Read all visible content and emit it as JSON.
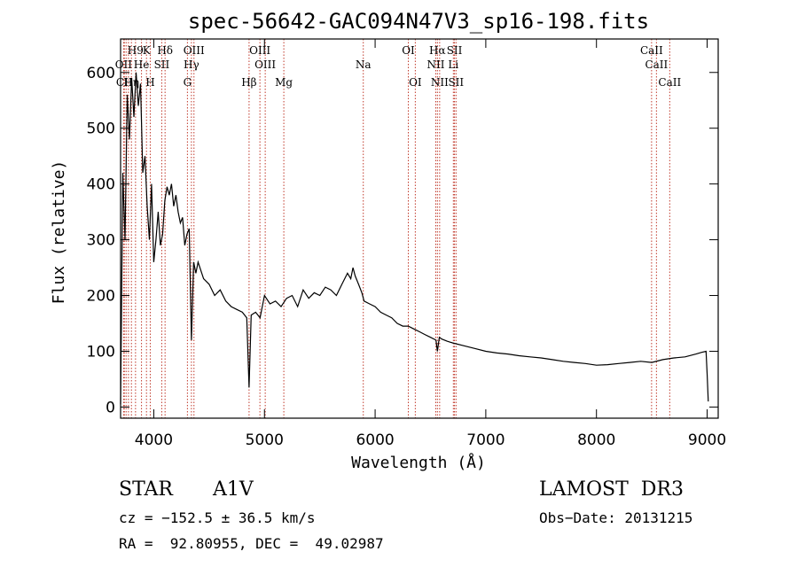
{
  "chart_data": {
    "type": "line",
    "title": "spec-56642-GAC094N47V3_sp16-198.fits",
    "xlabel": "Wavelength (Å)",
    "ylabel": "Flux (relative)",
    "xlim": [
      3700,
      9100
    ],
    "ylim": [
      -20,
      660
    ],
    "x_ticks": [
      4000,
      5000,
      6000,
      7000,
      8000,
      9000
    ],
    "y_ticks": [
      0,
      100,
      200,
      300,
      400,
      500,
      600
    ],
    "grid": false,
    "series": [
      {
        "name": "flux",
        "x": [
          3700,
          3720,
          3740,
          3760,
          3780,
          3800,
          3820,
          3840,
          3860,
          3880,
          3900,
          3920,
          3940,
          3960,
          3980,
          4000,
          4020,
          4040,
          4060,
          4080,
          4100,
          4120,
          4140,
          4160,
          4180,
          4200,
          4220,
          4240,
          4260,
          4280,
          4300,
          4320,
          4340,
          4360,
          4380,
          4400,
          4450,
          4500,
          4550,
          4600,
          4650,
          4700,
          4750,
          4800,
          4840,
          4861,
          4880,
          4920,
          4960,
          5000,
          5050,
          5100,
          5150,
          5200,
          5250,
          5300,
          5350,
          5400,
          5450,
          5500,
          5550,
          5600,
          5650,
          5700,
          5750,
          5780,
          5800,
          5820,
          5850,
          5880,
          5900,
          5950,
          6000,
          6050,
          6100,
          6150,
          6200,
          6250,
          6300,
          6350,
          6400,
          6450,
          6500,
          6550,
          6563,
          6580,
          6600,
          6650,
          6700,
          6800,
          6900,
          7000,
          7100,
          7200,
          7300,
          7400,
          7500,
          7600,
          7700,
          7800,
          7900,
          8000,
          8100,
          8200,
          8300,
          8400,
          8500,
          8600,
          8700,
          8800,
          8900,
          8950,
          8990,
          9000,
          9010
        ],
        "y": [
          5,
          420,
          300,
          560,
          480,
          590,
          520,
          600,
          540,
          580,
          420,
          450,
          360,
          300,
          400,
          260,
          300,
          350,
          290,
          310,
          370,
          395,
          380,
          400,
          360,
          380,
          350,
          330,
          340,
          290,
          310,
          320,
          120,
          260,
          240,
          260,
          230,
          220,
          200,
          210,
          190,
          180,
          175,
          170,
          160,
          35,
          165,
          170,
          160,
          200,
          185,
          190,
          180,
          195,
          200,
          180,
          210,
          195,
          205,
          200,
          215,
          210,
          200,
          220,
          240,
          230,
          250,
          235,
          220,
          205,
          190,
          185,
          180,
          170,
          165,
          160,
          150,
          145,
          145,
          140,
          135,
          130,
          125,
          120,
          100,
          125,
          122,
          118,
          115,
          110,
          105,
          100,
          97,
          95,
          92,
          90,
          88,
          85,
          82,
          80,
          78,
          75,
          76,
          78,
          80,
          82,
          80,
          85,
          88,
          90,
          95,
          98,
          100,
          60,
          10
        ]
      }
    ],
    "annotations": [
      {
        "label": "H9",
        "x": 3835,
        "row": 1
      },
      {
        "label": "K",
        "x": 3934,
        "row": 1
      },
      {
        "label": "Hδ",
        "x": 4102,
        "row": 1
      },
      {
        "label": "OIII",
        "x": 4363,
        "row": 1
      },
      {
        "label": "OIII",
        "x": 4959,
        "row": 1
      },
      {
        "label": "OI",
        "x": 6300,
        "row": 1
      },
      {
        "label": "Hα",
        "x": 6563,
        "row": 1
      },
      {
        "label": "SII",
        "x": 6717,
        "row": 1
      },
      {
        "label": "CaII",
        "x": 8498,
        "row": 1
      },
      {
        "label": "CaII",
        "x": 8542,
        "row": 2
      },
      {
        "label": "OII",
        "x": 3727,
        "row": 2
      },
      {
        "label": "He",
        "x": 3889,
        "row": 2
      },
      {
        "label": "SII",
        "x": 4072,
        "row": 2
      },
      {
        "label": "Hγ",
        "x": 4340,
        "row": 2
      },
      {
        "label": "OIII",
        "x": 5007,
        "row": 2
      },
      {
        "label": "Na",
        "x": 5893,
        "row": 2
      },
      {
        "label": "NII",
        "x": 6548,
        "row": 2
      },
      {
        "label": "Li",
        "x": 6707,
        "row": 2
      },
      {
        "label": "CII",
        "x": 3734,
        "row": 3
      },
      {
        "label": "Hη",
        "x": 3798,
        "row": 3
      },
      {
        "label": "H",
        "x": 3968,
        "row": 3
      },
      {
        "label": "G",
        "x": 4304,
        "row": 3
      },
      {
        "label": "Hβ",
        "x": 4861,
        "row": 3
      },
      {
        "label": "Mg",
        "x": 5175,
        "row": 3
      },
      {
        "label": "OI",
        "x": 6363,
        "row": 3
      },
      {
        "label": "NII",
        "x": 6583,
        "row": 3
      },
      {
        "label": "SII",
        "x": 6731,
        "row": 3
      },
      {
        "label": "CaII",
        "x": 8662,
        "row": 3
      }
    ],
    "line_marks": [
      3727,
      3734,
      3750,
      3771,
      3798,
      3835,
      3889,
      3934,
      3968,
      4072,
      4102,
      4304,
      4340,
      4363,
      4861,
      4959,
      5007,
      5175,
      5893,
      6300,
      6363,
      6548,
      6563,
      6583,
      6707,
      6717,
      6731,
      8498,
      8542,
      8662
    ]
  },
  "info": {
    "object_class": "STAR",
    "subclass": "A1V",
    "survey": "LAMOST  DR3",
    "cz": "cz = −152.5 ± 36.5 km/s",
    "obs_date": "Obs−Date: 20131215",
    "coords": "RA =  92.80955, DEC =  49.02987"
  }
}
